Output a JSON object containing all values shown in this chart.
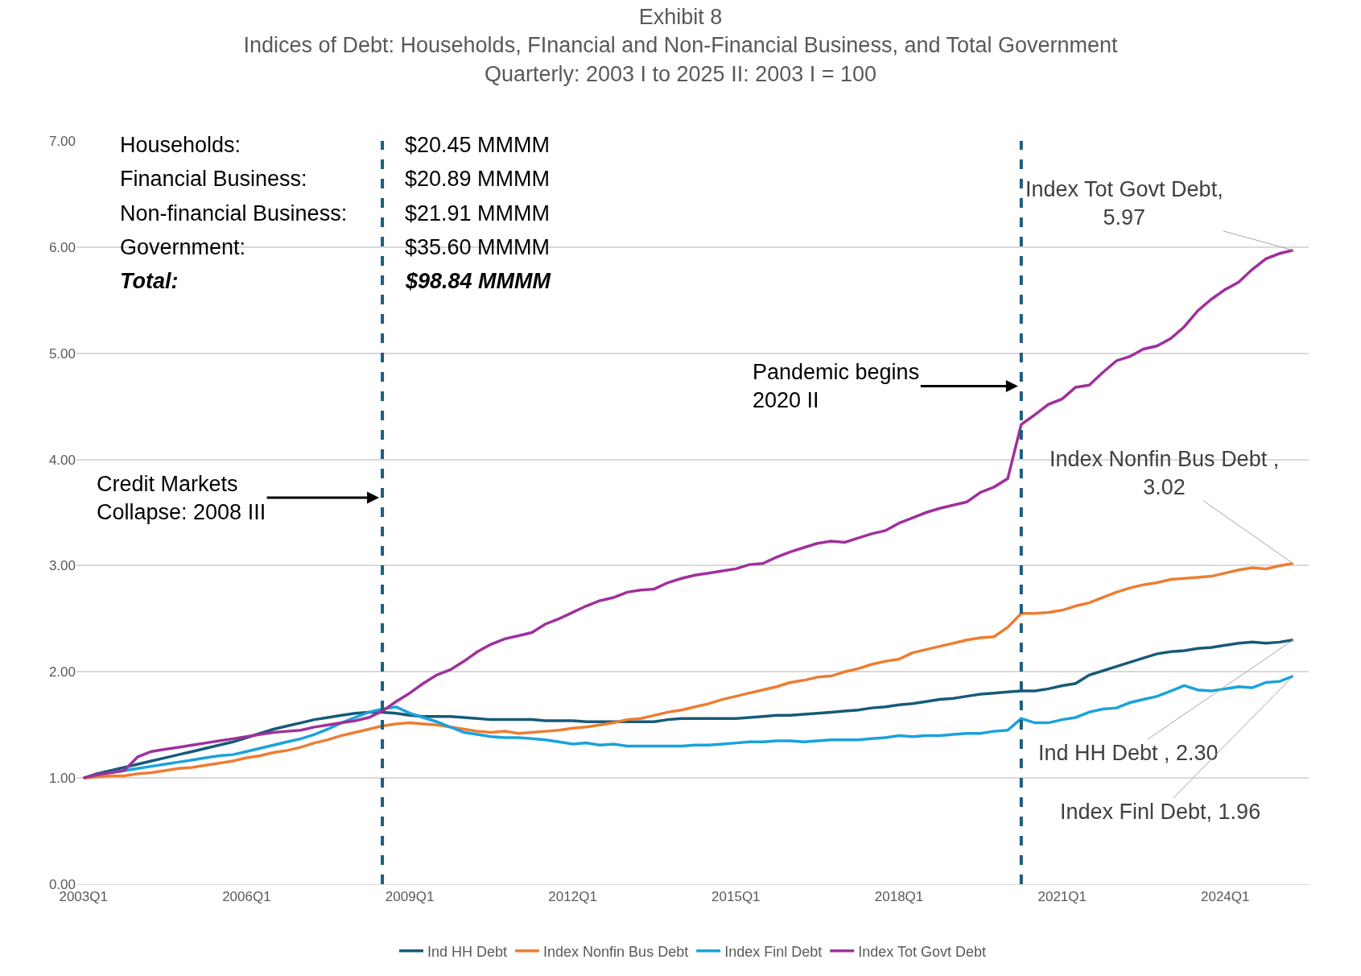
{
  "chart_data": {
    "type": "line",
    "title": "Exhibit 8",
    "subtitle": "Indices of Debt: Households, FInancial and Non-Financial Business, and Total Government\nQuarterly: 2003 I to 2025 II: 2003 I = 100",
    "x": [
      "2003-01",
      "2003-04",
      "2003-07",
      "2003-10",
      "2004-01",
      "2004-04",
      "2004-07",
      "2004-10",
      "2005-01",
      "2005-04",
      "2005-07",
      "2005-10",
      "2006-01",
      "2006-04",
      "2006-07",
      "2006-10",
      "2007-01",
      "2007-04",
      "2007-07",
      "2007-10",
      "2008-01",
      "2008-04",
      "2008-07",
      "2008-10",
      "2009-01",
      "2009-04",
      "2009-07",
      "2009-10",
      "2010-01",
      "2010-04",
      "2010-07",
      "2010-10",
      "2011-01",
      "2011-04",
      "2011-07",
      "2011-10",
      "2012-01",
      "2012-04",
      "2012-07",
      "2012-10",
      "2013-01",
      "2013-04",
      "2013-07",
      "2013-10",
      "2014-01",
      "2014-04",
      "2014-07",
      "2014-10",
      "2015-01",
      "2015-04",
      "2015-07",
      "2015-10",
      "2016-01",
      "2016-04",
      "2016-07",
      "2016-10",
      "2017-01",
      "2017-04",
      "2017-07",
      "2017-10",
      "2018-01",
      "2018-04",
      "2018-07",
      "2018-10",
      "2019-01",
      "2019-04",
      "2019-07",
      "2019-10",
      "2020-01",
      "2020-04",
      "2020-07",
      "2020-10",
      "2021-01",
      "2021-04",
      "2021-07",
      "2021-10",
      "2022-01",
      "2022-04",
      "2022-07",
      "2022-10",
      "2023-01",
      "2023-04",
      "2023-07",
      "2023-10",
      "2024-01",
      "2024-04",
      "2024-07",
      "2024-10",
      "2025-01",
      "2025-04"
    ],
    "series": [
      {
        "name": "Ind HH Debt",
        "color": "#165a78",
        "values": [
          1.0,
          1.04,
          1.07,
          1.1,
          1.13,
          1.16,
          1.19,
          1.22,
          1.25,
          1.28,
          1.31,
          1.34,
          1.38,
          1.42,
          1.46,
          1.49,
          1.52,
          1.55,
          1.57,
          1.59,
          1.61,
          1.62,
          1.62,
          1.61,
          1.59,
          1.58,
          1.58,
          1.58,
          1.57,
          1.56,
          1.55,
          1.55,
          1.55,
          1.55,
          1.54,
          1.54,
          1.54,
          1.53,
          1.53,
          1.53,
          1.53,
          1.53,
          1.53,
          1.55,
          1.56,
          1.56,
          1.56,
          1.56,
          1.56,
          1.57,
          1.58,
          1.59,
          1.59,
          1.6,
          1.61,
          1.62,
          1.63,
          1.64,
          1.66,
          1.67,
          1.69,
          1.7,
          1.72,
          1.74,
          1.75,
          1.77,
          1.79,
          1.8,
          1.81,
          1.82,
          1.82,
          1.84,
          1.87,
          1.89,
          1.97,
          2.01,
          2.05,
          2.09,
          2.13,
          2.17,
          2.19,
          2.2,
          2.22,
          2.23,
          2.25,
          2.27,
          2.28,
          2.27,
          2.28,
          2.3
        ]
      },
      {
        "name": "Index Nonfin Bus Debt",
        "color": "#ed7d31",
        "values": [
          1.0,
          1.01,
          1.02,
          1.02,
          1.04,
          1.05,
          1.07,
          1.09,
          1.1,
          1.12,
          1.14,
          1.16,
          1.19,
          1.21,
          1.24,
          1.26,
          1.29,
          1.33,
          1.36,
          1.4,
          1.43,
          1.46,
          1.49,
          1.51,
          1.52,
          1.51,
          1.5,
          1.48,
          1.46,
          1.44,
          1.43,
          1.44,
          1.42,
          1.43,
          1.44,
          1.45,
          1.47,
          1.48,
          1.5,
          1.52,
          1.55,
          1.56,
          1.59,
          1.62,
          1.64,
          1.67,
          1.7,
          1.74,
          1.77,
          1.8,
          1.83,
          1.86,
          1.9,
          1.92,
          1.95,
          1.96,
          2.0,
          2.03,
          2.07,
          2.1,
          2.12,
          2.18,
          2.21,
          2.24,
          2.27,
          2.3,
          2.32,
          2.33,
          2.42,
          2.55,
          2.55,
          2.56,
          2.58,
          2.62,
          2.65,
          2.7,
          2.75,
          2.79,
          2.82,
          2.84,
          2.87,
          2.88,
          2.89,
          2.9,
          2.93,
          2.96,
          2.98,
          2.97,
          3.0,
          3.02
        ]
      },
      {
        "name": "Index Finl Debt",
        "color": "#19a2dc",
        "values": [
          null,
          null,
          1.05,
          1.07,
          1.09,
          1.11,
          1.13,
          1.15,
          1.17,
          1.19,
          1.21,
          1.22,
          1.25,
          1.28,
          1.31,
          1.34,
          1.37,
          1.41,
          1.46,
          1.52,
          1.57,
          1.62,
          1.65,
          1.67,
          1.61,
          1.57,
          1.53,
          1.48,
          1.43,
          1.41,
          1.39,
          1.38,
          1.38,
          1.37,
          1.36,
          1.34,
          1.32,
          1.33,
          1.31,
          1.32,
          1.3,
          1.3,
          1.3,
          1.3,
          1.3,
          1.31,
          1.31,
          1.32,
          1.33,
          1.34,
          1.34,
          1.35,
          1.35,
          1.34,
          1.35,
          1.36,
          1.36,
          1.36,
          1.37,
          1.38,
          1.4,
          1.39,
          1.4,
          1.4,
          1.41,
          1.42,
          1.42,
          1.44,
          1.45,
          1.56,
          1.52,
          1.52,
          1.55,
          1.57,
          1.62,
          1.65,
          1.66,
          1.71,
          1.74,
          1.77,
          1.82,
          1.87,
          1.83,
          1.82,
          1.84,
          1.86,
          1.85,
          1.9,
          1.91,
          1.96
        ]
      },
      {
        "name": "Index Tot Govt Debt",
        "color": "#a0309d",
        "values": [
          1.0,
          1.03,
          1.05,
          1.07,
          1.2,
          1.25,
          1.27,
          1.29,
          1.31,
          1.33,
          1.35,
          1.37,
          1.39,
          1.41,
          1.43,
          1.44,
          1.45,
          1.48,
          1.5,
          1.52,
          1.54,
          1.57,
          1.63,
          1.72,
          1.8,
          1.89,
          1.97,
          2.02,
          2.1,
          2.19,
          2.26,
          2.31,
          2.34,
          2.37,
          2.45,
          2.5,
          2.56,
          2.62,
          2.67,
          2.7,
          2.75,
          2.77,
          2.78,
          2.84,
          2.88,
          2.91,
          2.93,
          2.95,
          2.97,
          3.01,
          3.02,
          3.08,
          3.13,
          3.17,
          3.21,
          3.23,
          3.22,
          3.26,
          3.3,
          3.33,
          3.4,
          3.45,
          3.5,
          3.54,
          3.57,
          3.6,
          3.69,
          3.74,
          3.82,
          4.33,
          4.42,
          4.52,
          4.57,
          4.68,
          4.7,
          4.82,
          4.93,
          4.97,
          5.04,
          5.07,
          5.14,
          5.25,
          5.4,
          5.51,
          5.6,
          5.67,
          5.79,
          5.89,
          5.94,
          5.97
        ]
      }
    ],
    "xlim": [
      "2002-11-15",
      "2025-07-15"
    ],
    "xticks": [
      {
        "value": "2003-01",
        "label": "2003Q1"
      },
      {
        "value": "2006-01",
        "label": "2006Q1"
      },
      {
        "value": "2009-01",
        "label": "2009Q1"
      },
      {
        "value": "2012-01",
        "label": "2012Q1"
      },
      {
        "value": "2015-01",
        "label": "2015Q1"
      },
      {
        "value": "2018-01",
        "label": "2018Q1"
      },
      {
        "value": "2021-01",
        "label": "2021Q1"
      },
      {
        "value": "2024-01",
        "label": "2024Q1"
      }
    ],
    "ylim": [
      0,
      7
    ],
    "yticks": [
      {
        "value": 0,
        "label": "0.00"
      },
      {
        "value": 1,
        "label": "1.00"
      },
      {
        "value": 2,
        "label": "2.00"
      },
      {
        "value": 3,
        "label": "3.00"
      },
      {
        "value": 4,
        "label": "4.00"
      },
      {
        "value": 5,
        "label": "5.00"
      },
      {
        "value": 6,
        "label": "6.00"
      },
      {
        "value": 7,
        "label": "7.00"
      }
    ],
    "ref_lines": [
      {
        "axis": "x",
        "value": "2008-07",
        "label": "Credit Markets\nCollapse: 2008 III",
        "color": "#1b5e7e",
        "line_style": "dashed"
      },
      {
        "axis": "x",
        "value": "2020-04",
        "label": "Pandemic begins\n2020 II",
        "color": "#1b5e7e",
        "line_style": "dashed"
      }
    ],
    "annotations": [
      "Households:",
      "$20.45 MMMM",
      "Financial Business:",
      "$20.89 MMMM",
      "Non-financial Business:",
      "$21.91 MMMM",
      "Government:",
      "$35.60 MMMM",
      "Total:",
      "$98.84 MMMM",
      {
        "text": "Index Tot Govt Debt,\n5.97",
        "x": "2025-04",
        "y": 5.97
      },
      {
        "text": "Index Nonfin Bus Debt ,\n3.02",
        "x": "2025-04",
        "y": 3.02
      },
      {
        "text": "Ind HH Debt , 2.30",
        "x": "2025-04",
        "y": 2.3
      },
      {
        "text": "Index Finl Debt, 1.96",
        "x": "2025-04",
        "y": 1.96
      }
    ],
    "grid": "y",
    "legend": "bottom",
    "marker": "none",
    "line_style": "solid"
  }
}
